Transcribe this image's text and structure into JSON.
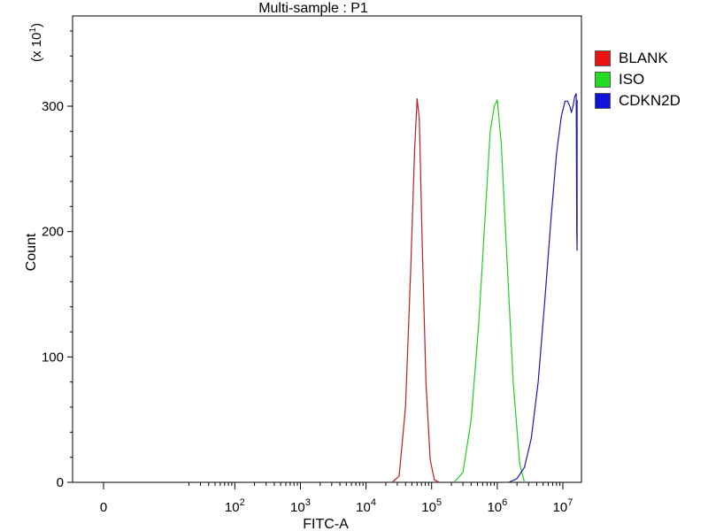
{
  "chart_data": {
    "type": "line",
    "title": "Multi-sample : P1",
    "xlabel": "FITC-A",
    "ylabel": "Count",
    "y_multiplier": "(x 10",
    "y_multiplier_exp": "1",
    "y_multiplier_close": ")",
    "x_scale": "log",
    "xlim": [
      1,
      17000000
    ],
    "ylim": [
      0,
      372
    ],
    "x_ticks": [
      {
        "value": 1,
        "base": "0",
        "exp": ""
      },
      {
        "value": 100,
        "base": "10",
        "exp": "2"
      },
      {
        "value": 1000,
        "base": "10",
        "exp": "3"
      },
      {
        "value": 10000,
        "base": "10",
        "exp": "4"
      },
      {
        "value": 100000,
        "base": "10",
        "exp": "5"
      },
      {
        "value": 1000000,
        "base": "10",
        "exp": "6"
      },
      {
        "value": 10000000,
        "base": "10",
        "exp": "7"
      }
    ],
    "y_ticks": [
      0,
      100,
      200,
      300
    ],
    "grid": false,
    "legend_position": "top-right",
    "series": [
      {
        "name": "BLANK",
        "color": "#b22222",
        "x": [
          25000,
          32000,
          40000,
          48000,
          55000,
          60000,
          65000,
          72000,
          82000,
          95000,
          110000,
          130000
        ],
        "y": [
          0,
          5,
          60,
          170,
          265,
          306,
          290,
          190,
          80,
          18,
          2,
          0
        ]
      },
      {
        "name": "ISO",
        "color": "#22cc22",
        "x": [
          220000,
          300000,
          400000,
          520000,
          650000,
          780000,
          900000,
          1000000,
          1150000,
          1400000,
          1750000,
          2200000,
          2600000
        ],
        "y": [
          0,
          8,
          50,
          125,
          210,
          280,
          300,
          305,
          270,
          180,
          80,
          15,
          0
        ]
      },
      {
        "name": "CDKN2D",
        "color": "#1c1ca8",
        "x": [
          1500000,
          2000000,
          2600000,
          3300000,
          4200000,
          5300000,
          6600000,
          8000000,
          9500000,
          10800000,
          11800000,
          12800000,
          13500000,
          14300000,
          15200000,
          16000000,
          16300000,
          16500000,
          16500000,
          16500000
        ],
        "y": [
          0,
          3,
          12,
          35,
          80,
          145,
          210,
          262,
          292,
          304,
          304,
          300,
          295,
          300,
          308,
          310,
          200,
          185,
          290,
          305
        ]
      }
    ]
  },
  "legend": {
    "items": [
      {
        "label": "BLANK",
        "color": "#ee1111"
      },
      {
        "label": "ISO",
        "color": "#22dd22"
      },
      {
        "label": "CDKN2D",
        "color": "#1111dd"
      }
    ]
  }
}
